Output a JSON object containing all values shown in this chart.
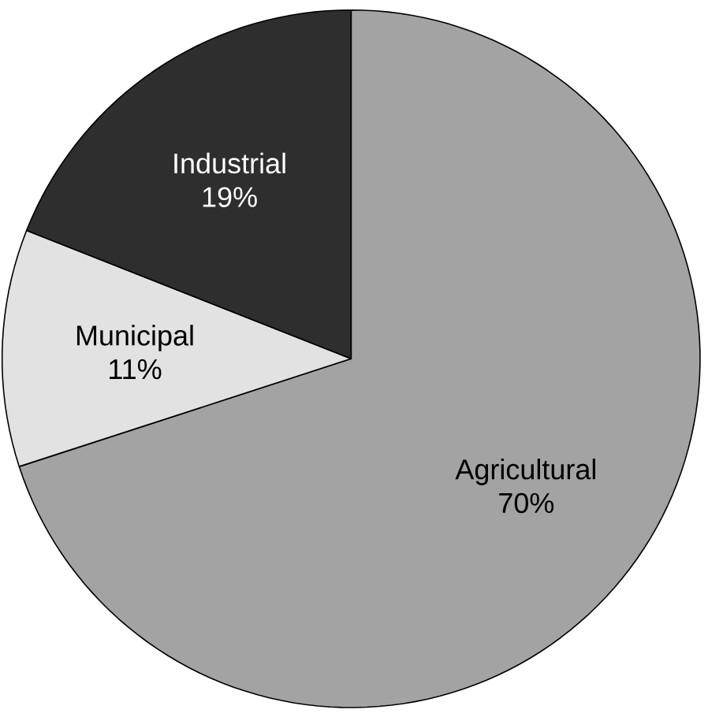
{
  "chart_data": {
    "type": "pie",
    "categories": [
      "Agricultural",
      "Municipal",
      "Industrial"
    ],
    "values": [
      70,
      11,
      19
    ],
    "colors": [
      "#a3a3a3",
      "#e2e2e2",
      "#2e2e2e"
    ],
    "value_labels": [
      "70%",
      "11%",
      "19%"
    ]
  }
}
